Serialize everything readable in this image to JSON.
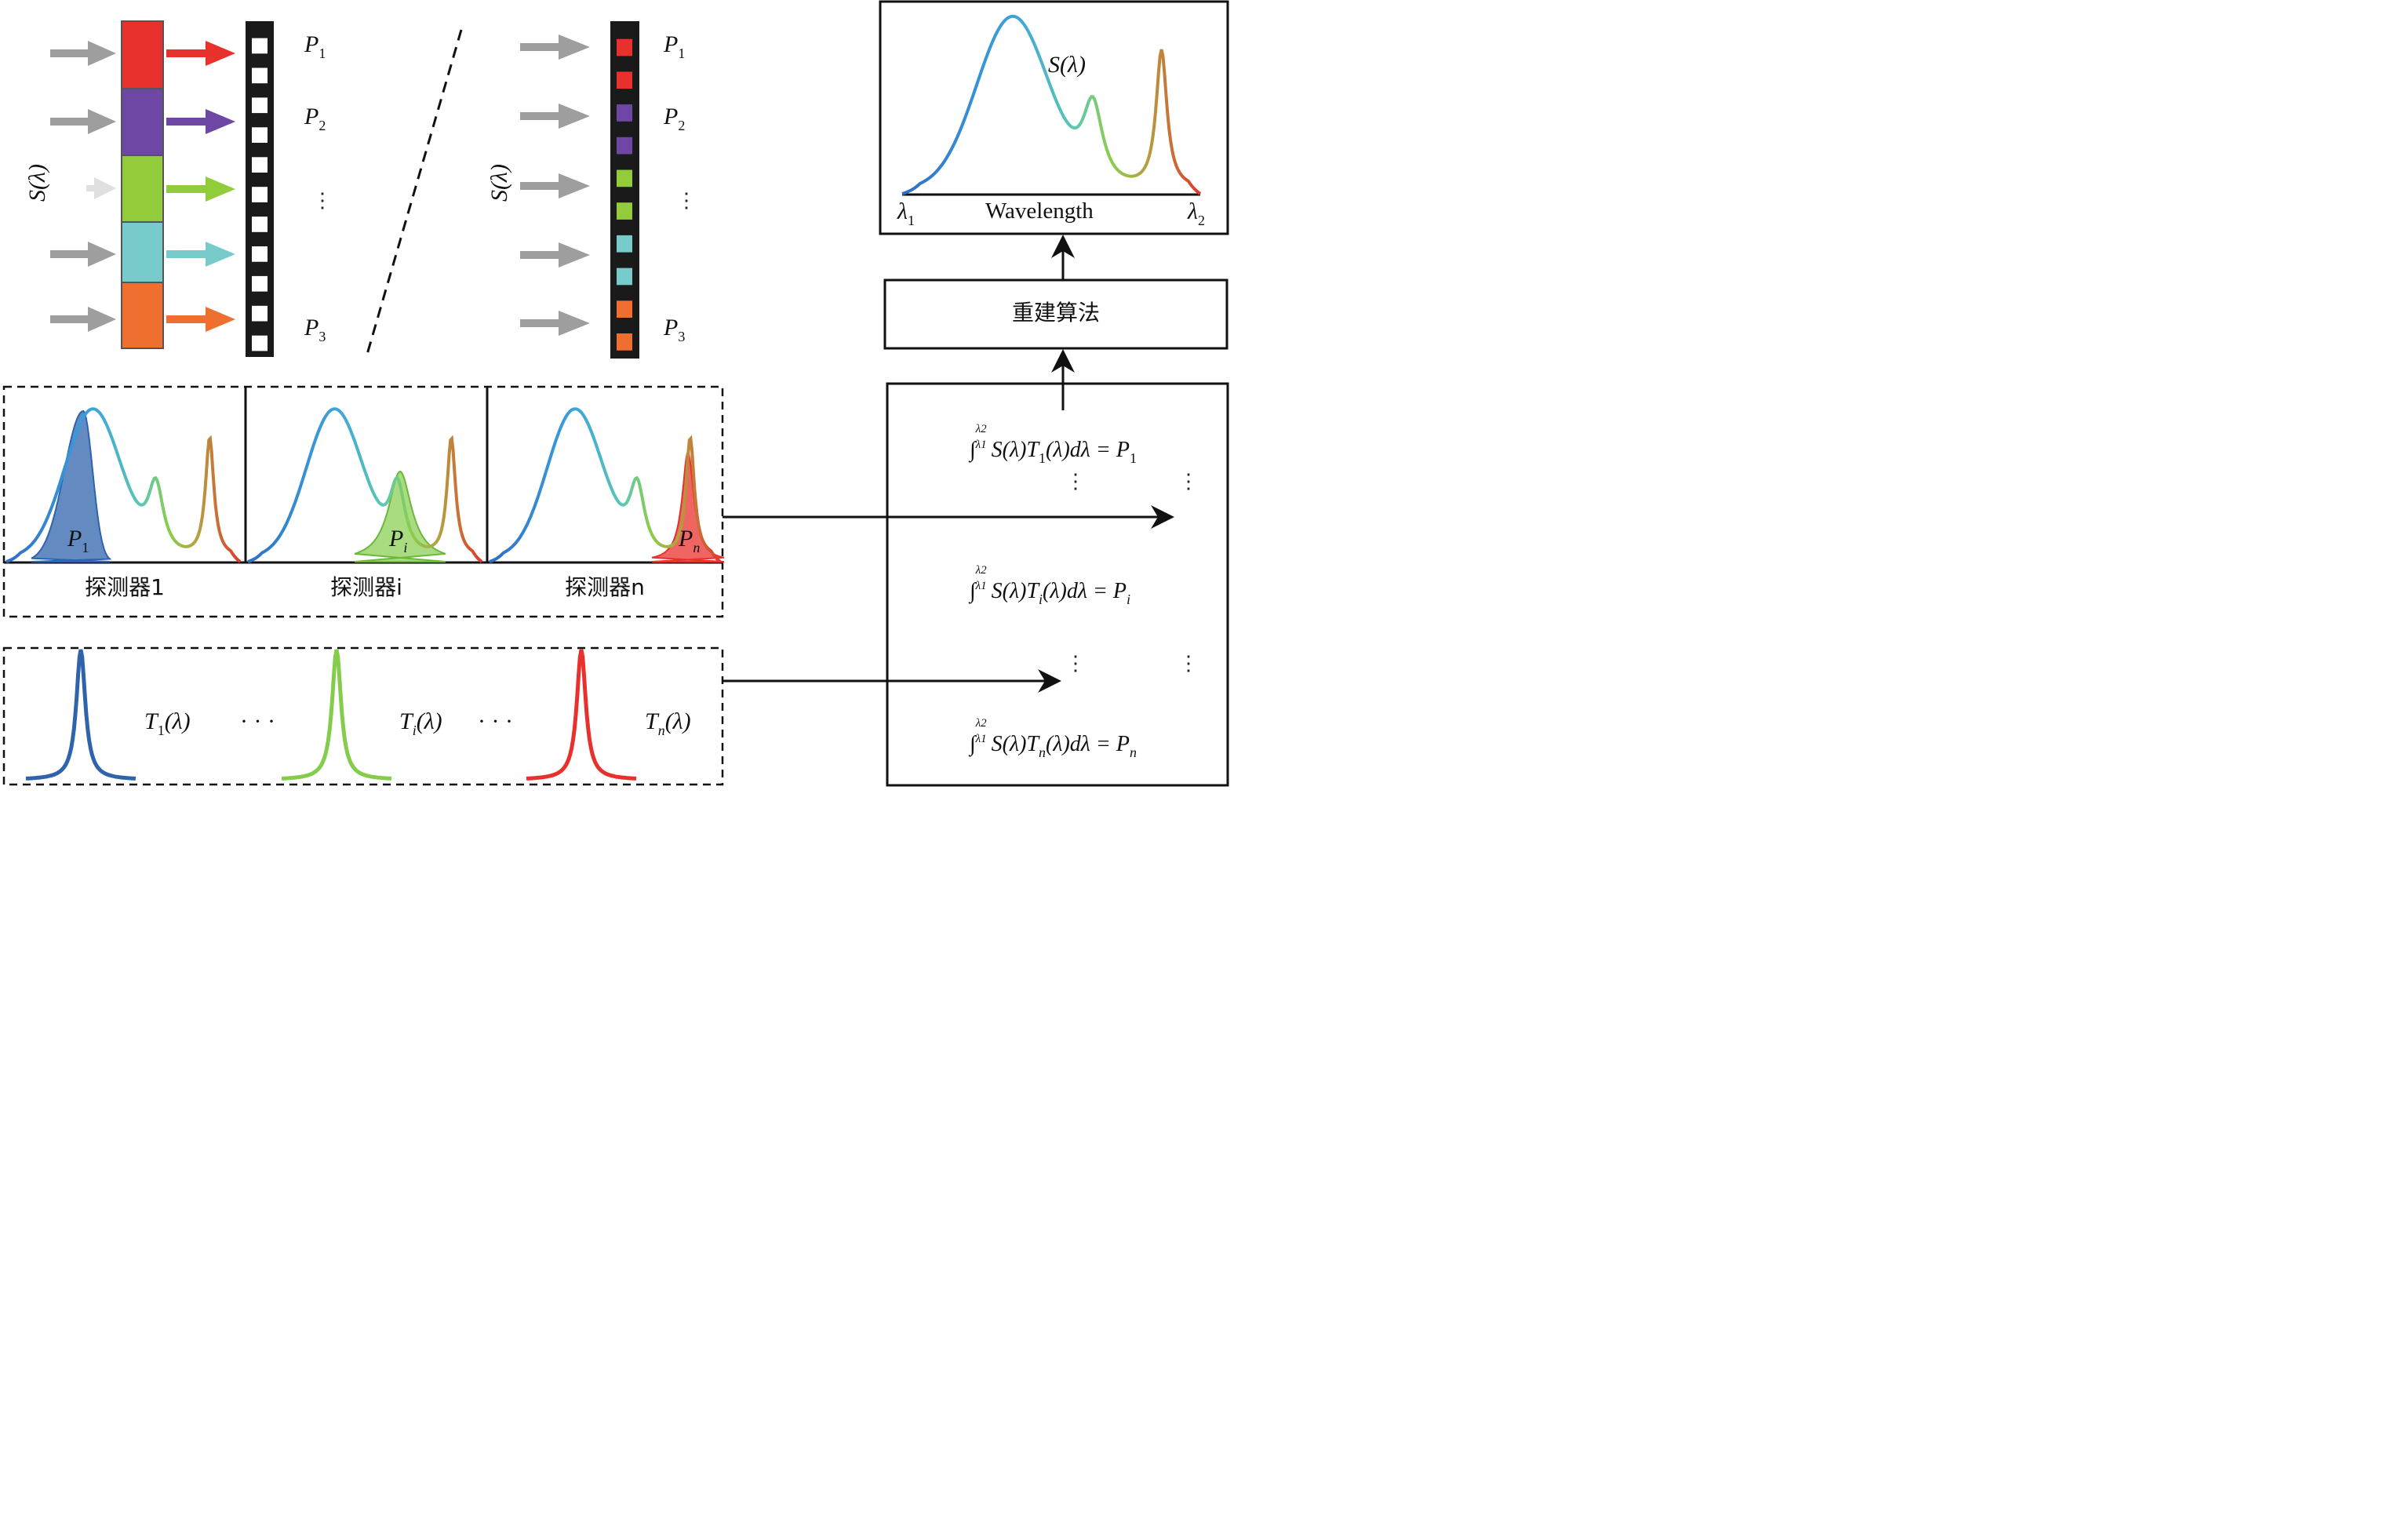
{
  "colors": {
    "red": "#e8312d",
    "purple": "#6e47a4",
    "green": "#92cc3a",
    "cyan": "#78cbcb",
    "orange": "#ee6f30",
    "blue": "#3a8fd6",
    "detector_blue": "#2f64ad",
    "filter_green": "#84cc4a",
    "filter_red": "#e8312d",
    "arrow_gray": "#9e9e9e",
    "black": "#111111"
  },
  "left_panel": {
    "input_label": "S(λ)",
    "outputs": [
      {
        "name": "P",
        "sub": "1"
      },
      {
        "name": "P",
        "sub": "2"
      },
      {
        "name": "P",
        "sub": "3"
      }
    ],
    "output_dots": "⋮"
  },
  "right_panel": {
    "input_label": "S(λ)",
    "outputs": [
      {
        "name": "P",
        "sub": "1"
      },
      {
        "name": "P",
        "sub": "2"
      },
      {
        "name": "P",
        "sub": "3"
      }
    ],
    "output_dots": "⋮"
  },
  "spectrum_box": {
    "curve_label": "S(λ)",
    "x_axis_label": "Wavelength",
    "x_min_label": {
      "name": "λ",
      "sub": "1"
    },
    "x_max_label": {
      "name": "λ",
      "sub": "2"
    }
  },
  "algorithm_box": {
    "label": "重建算法"
  },
  "detectors": [
    {
      "label": "探测器1",
      "power": {
        "name": "P",
        "sub": "1"
      }
    },
    {
      "label": "探测器i",
      "power": {
        "name": "P",
        "sub": "i"
      }
    },
    {
      "label": "探测器n",
      "power": {
        "name": "P",
        "sub": "n"
      }
    }
  ],
  "filters": [
    {
      "name": "T",
      "sub": "1",
      "arg": "(λ)"
    },
    {
      "name": "T",
      "sub": "i",
      "arg": "(λ)"
    },
    {
      "name": "T",
      "sub": "n",
      "arg": "(λ)"
    }
  ],
  "filter_ellipsis": "· · ·",
  "equations": [
    {
      "upper": "λ2",
      "lower": "λ1",
      "body": "S(λ)T",
      "t_sub": "1",
      "tail": "(λ)dλ = P",
      "p_sub": "1"
    },
    {
      "upper": "λ2",
      "lower": "λ1",
      "body": "S(λ)T",
      "t_sub": "i",
      "tail": "(λ)dλ = P",
      "p_sub": "i"
    },
    {
      "upper": "λ2",
      "lower": "λ1",
      "body": "S(λ)T",
      "t_sub": "n",
      "tail": "(λ)dλ = P",
      "p_sub": "n"
    }
  ],
  "equation_dots": "⋮"
}
